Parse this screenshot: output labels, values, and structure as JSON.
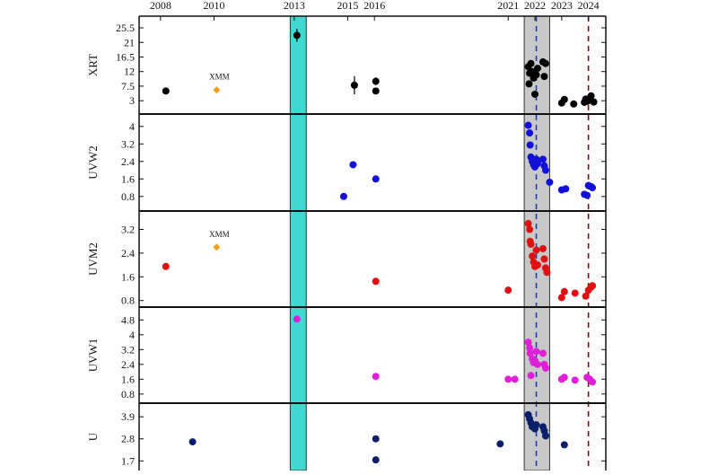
{
  "chart_data": {
    "type": "scatter",
    "x_ticks": [
      "2008",
      "2010",
      "2013",
      "2015",
      "2016",
      "2021",
      "2022",
      "2023",
      "2024"
    ],
    "x_tick_years": [
      2008,
      2010,
      2013,
      2015,
      2016,
      2021,
      2022,
      2023,
      2024
    ],
    "x_range": [
      2007.2,
      2024.65
    ],
    "grid": false,
    "highlight_bands": [
      {
        "from": 2012.85,
        "to": 2013.45,
        "color": "#40d8d0"
      },
      {
        "from": 2021.6,
        "to": 2022.55,
        "color": "#c8c8c8"
      }
    ],
    "vertical_lines": [
      {
        "x": 2022.05,
        "color": "#1f3fb0",
        "style": "dashed"
      },
      {
        "x": 2024.0,
        "color": "#7a1010",
        "style": "dashed"
      }
    ],
    "panels": [
      {
        "ylabel": "XRT",
        "ylim": [
          0,
          28
        ],
        "yticks": [
          "25.5",
          "21",
          "16.5",
          "12",
          "7.5",
          "3"
        ],
        "ytick_values": [
          25.5,
          21,
          16.5,
          12,
          7.5,
          3
        ],
        "color": "#000000",
        "annotation": {
          "text": "XMM",
          "x": 2010.2,
          "y": 9.5
        },
        "xmm_point": {
          "x": 2010.1,
          "y": 6.3,
          "color": "#f0a020"
        },
        "points": [
          {
            "x": 2008.2,
            "y": 6
          },
          {
            "x": 2013.1,
            "y": 23.2,
            "err": 2.0
          },
          {
            "x": 2015.25,
            "y": 7.8,
            "err": 2.8
          },
          {
            "x": 2016.05,
            "y": 9,
            "err": 1.2
          },
          {
            "x": 2016.05,
            "y": 6
          },
          {
            "x": 2021.75,
            "y": 13.5
          },
          {
            "x": 2021.8,
            "y": 11.5
          },
          {
            "x": 2021.78,
            "y": 8.2
          },
          {
            "x": 2021.85,
            "y": 14.5
          },
          {
            "x": 2021.9,
            "y": 12
          },
          {
            "x": 2021.95,
            "y": 10
          },
          {
            "x": 2022.0,
            "y": 5
          },
          {
            "x": 2022.05,
            "y": 11
          },
          {
            "x": 2022.1,
            "y": 13
          },
          {
            "x": 2022.3,
            "y": 15
          },
          {
            "x": 2022.35,
            "y": 10.5
          },
          {
            "x": 2022.4,
            "y": 14.5
          },
          {
            "x": 2023.0,
            "y": 2.3
          },
          {
            "x": 2023.1,
            "y": 3.4
          },
          {
            "x": 2023.45,
            "y": 2
          },
          {
            "x": 2023.85,
            "y": 2.5
          },
          {
            "x": 2023.9,
            "y": 3.5
          },
          {
            "x": 2023.95,
            "y": 2.8
          },
          {
            "x": 2024.05,
            "y": 3.2
          },
          {
            "x": 2024.1,
            "y": 4.5
          },
          {
            "x": 2024.2,
            "y": 2.6
          }
        ]
      },
      {
        "ylabel": "UVW2",
        "ylim": [
          0.3,
          4.4
        ],
        "yticks": [
          "4",
          "3.2",
          "2.4",
          "1.6",
          "0.8"
        ],
        "ytick_values": [
          4,
          3.2,
          2.4,
          1.6,
          0.8
        ],
        "color": "#1010d8",
        "points": [
          {
            "x": 2014.85,
            "y": 0.8
          },
          {
            "x": 2015.2,
            "y": 2.25
          },
          {
            "x": 2016.05,
            "y": 1.6
          },
          {
            "x": 2021.75,
            "y": 4.05
          },
          {
            "x": 2021.8,
            "y": 3.7
          },
          {
            "x": 2021.82,
            "y": 3.15
          },
          {
            "x": 2021.85,
            "y": 2.6
          },
          {
            "x": 2021.9,
            "y": 2.4
          },
          {
            "x": 2021.95,
            "y": 2.25
          },
          {
            "x": 2022.0,
            "y": 2.15
          },
          {
            "x": 2022.05,
            "y": 2.5
          },
          {
            "x": 2022.1,
            "y": 2.3
          },
          {
            "x": 2022.3,
            "y": 2.5
          },
          {
            "x": 2022.35,
            "y": 2.2
          },
          {
            "x": 2022.4,
            "y": 2.0
          },
          {
            "x": 2022.55,
            "y": 1.45
          },
          {
            "x": 2023.0,
            "y": 1.1
          },
          {
            "x": 2023.15,
            "y": 1.15
          },
          {
            "x": 2023.85,
            "y": 0.9
          },
          {
            "x": 2023.95,
            "y": 0.85
          },
          {
            "x": 2024.0,
            "y": 1.3
          },
          {
            "x": 2024.1,
            "y": 1.25
          },
          {
            "x": 2024.15,
            "y": 1.2
          }
        ]
      },
      {
        "ylabel": "UVM2",
        "ylim": [
          0.7,
          3.7
        ],
        "yticks": [
          "3.2",
          "2.4",
          "1.6",
          "0.8"
        ],
        "ytick_values": [
          3.2,
          2.4,
          1.6,
          0.8
        ],
        "color": "#e01010",
        "annotation": {
          "text": "XMM",
          "x": 2010.2,
          "y": 2.95
        },
        "xmm_point": {
          "x": 2010.1,
          "y": 2.6,
          "color": "#f0a020"
        },
        "points": [
          {
            "x": 2008.2,
            "y": 1.95
          },
          {
            "x": 2016.05,
            "y": 1.45
          },
          {
            "x": 2021.0,
            "y": 1.15
          },
          {
            "x": 2021.75,
            "y": 3.4
          },
          {
            "x": 2021.8,
            "y": 3.2
          },
          {
            "x": 2021.82,
            "y": 2.8
          },
          {
            "x": 2021.85,
            "y": 2.7
          },
          {
            "x": 2021.9,
            "y": 2.3
          },
          {
            "x": 2021.95,
            "y": 2.1
          },
          {
            "x": 2022.0,
            "y": 1.95
          },
          {
            "x": 2022.05,
            "y": 2.5
          },
          {
            "x": 2022.1,
            "y": 2.0
          },
          {
            "x": 2022.3,
            "y": 2.55
          },
          {
            "x": 2022.35,
            "y": 2.2
          },
          {
            "x": 2022.4,
            "y": 1.9
          },
          {
            "x": 2022.45,
            "y": 1.75
          },
          {
            "x": 2023.0,
            "y": 0.9
          },
          {
            "x": 2023.1,
            "y": 1.1
          },
          {
            "x": 2023.5,
            "y": 1.05
          },
          {
            "x": 2023.9,
            "y": 0.95
          },
          {
            "x": 2024.0,
            "y": 1.15
          },
          {
            "x": 2024.1,
            "y": 1.25
          },
          {
            "x": 2024.15,
            "y": 1.3
          }
        ]
      },
      {
        "ylabel": "UVW1",
        "ylim": [
          0.5,
          5.3
        ],
        "yticks": [
          "4.8",
          "4",
          "3.2",
          "2.4",
          "1.6",
          "0.8"
        ],
        "ytick_values": [
          4.8,
          4,
          3.2,
          2.4,
          1.6,
          0.8
        ],
        "color": "#e020d8",
        "points": [
          {
            "x": 2013.1,
            "y": 4.85
          },
          {
            "x": 2016.05,
            "y": 1.75
          },
          {
            "x": 2021.0,
            "y": 1.6
          },
          {
            "x": 2021.25,
            "y": 1.6
          },
          {
            "x": 2021.75,
            "y": 3.6
          },
          {
            "x": 2021.8,
            "y": 3.3
          },
          {
            "x": 2021.82,
            "y": 3.0
          },
          {
            "x": 2021.85,
            "y": 1.8
          },
          {
            "x": 2021.9,
            "y": 2.7
          },
          {
            "x": 2021.95,
            "y": 2.5
          },
          {
            "x": 2022.0,
            "y": 2.6
          },
          {
            "x": 2022.05,
            "y": 3.1
          },
          {
            "x": 2022.1,
            "y": 2.4
          },
          {
            "x": 2022.3,
            "y": 3.0
          },
          {
            "x": 2022.35,
            "y": 2.4
          },
          {
            "x": 2022.4,
            "y": 2.2
          },
          {
            "x": 2023.0,
            "y": 1.6
          },
          {
            "x": 2023.1,
            "y": 1.7
          },
          {
            "x": 2023.5,
            "y": 1.55
          },
          {
            "x": 2023.95,
            "y": 1.7
          },
          {
            "x": 2024.05,
            "y": 1.6
          },
          {
            "x": 2024.15,
            "y": 1.45
          }
        ]
      },
      {
        "ylabel": "U",
        "ylim": [
          1.4,
          4.4
        ],
        "yticks": [
          "3.9",
          "2.8",
          "1.7"
        ],
        "ytick_values": [
          3.9,
          2.8,
          1.7
        ],
        "color": "#0a1f6b",
        "points": [
          {
            "x": 2009.2,
            "y": 2.65
          },
          {
            "x": 2016.05,
            "y": 2.8
          },
          {
            "x": 2016.05,
            "y": 1.75
          },
          {
            "x": 2020.7,
            "y": 2.55
          },
          {
            "x": 2021.75,
            "y": 4.0
          },
          {
            "x": 2021.8,
            "y": 3.8
          },
          {
            "x": 2021.85,
            "y": 3.6
          },
          {
            "x": 2021.9,
            "y": 3.4
          },
          {
            "x": 2022.0,
            "y": 3.3
          },
          {
            "x": 2022.05,
            "y": 3.5
          },
          {
            "x": 2022.3,
            "y": 3.4
          },
          {
            "x": 2022.35,
            "y": 3.2
          },
          {
            "x": 2022.4,
            "y": 2.95
          },
          {
            "x": 2023.1,
            "y": 2.5
          }
        ]
      }
    ]
  }
}
